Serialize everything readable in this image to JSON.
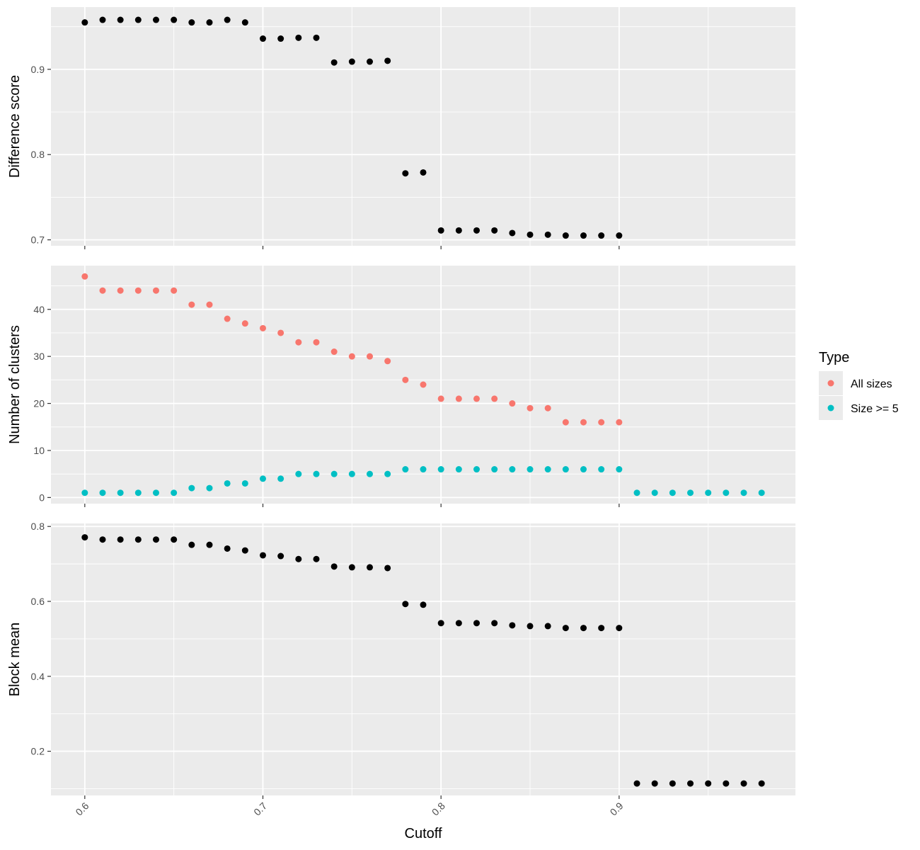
{
  "chart_data": {
    "type": "scatter",
    "xlabel": "Cutoff",
    "xlim": [
      0.581,
      0.999
    ],
    "xticks": [
      0.6,
      0.7,
      0.8,
      0.9
    ],
    "xtick_labels": [
      "0.6",
      "0.7",
      "0.8",
      "0.9"
    ],
    "panels": [
      {
        "id": "difference",
        "ylabel": "Difference score",
        "ylim": [
          0.693,
          0.973
        ],
        "yticks": [
          0.7,
          0.8,
          0.9
        ],
        "ytick_labels": [
          "0.7",
          "0.8",
          "0.9"
        ],
        "series": [
          {
            "color": "#000000",
            "x": [
              0.6,
              0.61,
              0.62,
              0.63,
              0.64,
              0.65,
              0.66,
              0.67,
              0.68,
              0.69,
              0.7,
              0.71,
              0.72,
              0.73,
              0.74,
              0.75,
              0.76,
              0.77,
              0.78,
              0.79,
              0.8,
              0.81,
              0.82,
              0.83,
              0.84,
              0.85,
              0.86,
              0.87,
              0.88,
              0.89,
              0.9
            ],
            "y": [
              0.955,
              0.958,
              0.958,
              0.958,
              0.958,
              0.958,
              0.955,
              0.955,
              0.958,
              0.955,
              0.936,
              0.936,
              0.937,
              0.937,
              0.908,
              0.909,
              0.909,
              0.91,
              0.778,
              0.779,
              0.711,
              0.711,
              0.711,
              0.711,
              0.708,
              0.706,
              0.706,
              0.705,
              0.705,
              0.705,
              0.705
            ]
          }
        ]
      },
      {
        "id": "clusters",
        "ylabel": "Number of clusters",
        "ylim": [
          -1.3,
          49.3
        ],
        "yticks": [
          0,
          10,
          20,
          30,
          40
        ],
        "ytick_labels": [
          "0",
          "10",
          "20",
          "30",
          "40"
        ],
        "series": [
          {
            "name": "All sizes",
            "color": "#F8766D",
            "x": [
              0.6,
              0.61,
              0.62,
              0.63,
              0.64,
              0.65,
              0.66,
              0.67,
              0.68,
              0.69,
              0.7,
              0.71,
              0.72,
              0.73,
              0.74,
              0.75,
              0.76,
              0.77,
              0.78,
              0.79,
              0.8,
              0.81,
              0.82,
              0.83,
              0.84,
              0.85,
              0.86,
              0.87,
              0.88,
              0.89,
              0.9
            ],
            "y": [
              47,
              44,
              44,
              44,
              44,
              44,
              41,
              41,
              38,
              37,
              36,
              35,
              33,
              33,
              31,
              30,
              30,
              29,
              25,
              24,
              21,
              21,
              21,
              21,
              20,
              19,
              19,
              16,
              16,
              16,
              16
            ]
          },
          {
            "name": "Size >= 5",
            "color": "#00BFC4",
            "x": [
              0.6,
              0.61,
              0.62,
              0.63,
              0.64,
              0.65,
              0.66,
              0.67,
              0.68,
              0.69,
              0.7,
              0.71,
              0.72,
              0.73,
              0.74,
              0.75,
              0.76,
              0.77,
              0.78,
              0.79,
              0.8,
              0.81,
              0.82,
              0.83,
              0.84,
              0.85,
              0.86,
              0.87,
              0.88,
              0.89,
              0.9,
              0.91,
              0.92,
              0.93,
              0.94,
              0.95,
              0.96,
              0.97,
              0.98
            ],
            "y": [
              1,
              1,
              1,
              1,
              1,
              1,
              2,
              2,
              3,
              3,
              4,
              4,
              5,
              5,
              5,
              5,
              5,
              5,
              6,
              6,
              6,
              6,
              6,
              6,
              6,
              6,
              6,
              6,
              6,
              6,
              6,
              1,
              1,
              1,
              1,
              1,
              1,
              1,
              1
            ]
          }
        ]
      },
      {
        "id": "blockmean",
        "ylabel": "Block mean",
        "ylim": [
          0.082,
          0.808
        ],
        "yticks": [
          0.2,
          0.4,
          0.6,
          0.8
        ],
        "ytick_labels": [
          "0.2",
          "0.4",
          "0.6",
          "0.8"
        ],
        "series": [
          {
            "color": "#000000",
            "x": [
              0.6,
              0.61,
              0.62,
              0.63,
              0.64,
              0.65,
              0.66,
              0.67,
              0.68,
              0.69,
              0.7,
              0.71,
              0.72,
              0.73,
              0.74,
              0.75,
              0.76,
              0.77,
              0.78,
              0.79,
              0.8,
              0.81,
              0.82,
              0.83,
              0.84,
              0.85,
              0.86,
              0.87,
              0.88,
              0.89,
              0.9,
              0.91,
              0.92,
              0.93,
              0.94,
              0.95,
              0.96,
              0.97,
              0.98
            ],
            "y": [
              0.771,
              0.765,
              0.765,
              0.765,
              0.765,
              0.765,
              0.751,
              0.751,
              0.741,
              0.736,
              0.723,
              0.721,
              0.713,
              0.713,
              0.693,
              0.691,
              0.691,
              0.689,
              0.593,
              0.591,
              0.542,
              0.542,
              0.542,
              0.542,
              0.536,
              0.534,
              0.534,
              0.529,
              0.529,
              0.529,
              0.529,
              0.114,
              0.114,
              0.114,
              0.114,
              0.114,
              0.114,
              0.114,
              0.114
            ]
          }
        ]
      }
    ],
    "legend": {
      "title": "Type",
      "position": "right",
      "entries": [
        "All sizes",
        "Size >= 5"
      ]
    },
    "grid": true
  }
}
